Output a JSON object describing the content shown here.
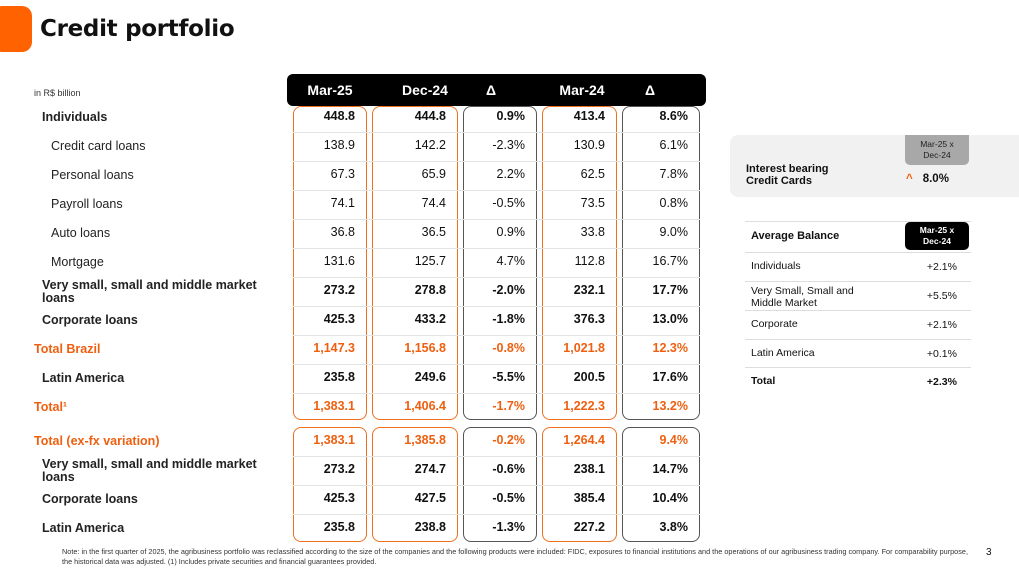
{
  "title": "Credit portfolio",
  "unit": "in R$ billion",
  "columns": [
    "Mar-25",
    "Dec-24",
    "Δ",
    "Mar-24",
    "Δ"
  ],
  "rows": [
    {
      "label": "Individuals",
      "style": "b",
      "values": [
        "448.8",
        "444.8",
        "0.9%",
        "413.4",
        "8.6%"
      ]
    },
    {
      "label": "Credit card loans",
      "style": "sub",
      "values": [
        "138.9",
        "142.2",
        "-2.3%",
        "130.9",
        "6.1%"
      ]
    },
    {
      "label": "Personal loans",
      "style": "sub",
      "values": [
        "67.3",
        "65.9",
        "2.2%",
        "62.5",
        "7.8%"
      ]
    },
    {
      "label": "Payroll loans",
      "style": "sub",
      "values": [
        "74.1",
        "74.4",
        "-0.5%",
        "73.5",
        "0.8%"
      ]
    },
    {
      "label": "Auto loans",
      "style": "sub",
      "values": [
        "36.8",
        "36.5",
        "0.9%",
        "33.8",
        "9.0%"
      ]
    },
    {
      "label": "Mortgage",
      "style": "sub",
      "values": [
        "131.6",
        "125.7",
        "4.7%",
        "112.8",
        "16.7%"
      ]
    },
    {
      "label": "Very small, small and middle market loans",
      "style": "b",
      "values": [
        "273.2",
        "278.8",
        "-2.0%",
        "232.1",
        "17.7%"
      ]
    },
    {
      "label": "Corporate loans",
      "style": "b",
      "values": [
        "425.3",
        "433.2",
        "-1.8%",
        "376.3",
        "13.0%"
      ]
    },
    {
      "label": "Total Brazil",
      "style": "o",
      "values": [
        "1,147.3",
        "1,156.8",
        "-0.8%",
        "1,021.8",
        "12.3%"
      ]
    },
    {
      "label": "Latin America",
      "style": "b",
      "values": [
        "235.8",
        "249.6",
        "-5.5%",
        "200.5",
        "17.6%"
      ]
    },
    {
      "label": "Total¹",
      "style": "o",
      "values": [
        "1,383.1",
        "1,406.4",
        "-1.7%",
        "1,222.3",
        "13.2%"
      ]
    }
  ],
  "rows_exfx": [
    {
      "label": "Total (ex-fx variation)",
      "style": "o",
      "values": [
        "1,383.1",
        "1,385.8",
        "-0.2%",
        "1,264.4",
        "9.4%"
      ]
    },
    {
      "label": "Very small, small and middle market loans",
      "style": "b",
      "values": [
        "273.2",
        "274.7",
        "-0.6%",
        "238.1",
        "14.7%"
      ]
    },
    {
      "label": "Corporate loans",
      "style": "b",
      "values": [
        "425.3",
        "427.5",
        "-0.5%",
        "385.4",
        "10.4%"
      ]
    },
    {
      "label": "Latin America",
      "style": "b",
      "values": [
        "235.8",
        "238.8",
        "-1.3%",
        "227.2",
        "3.8%"
      ]
    }
  ],
  "interest_bearing": {
    "label_line1": "Interest bearing",
    "label_line2": "Credit Cards",
    "header_line1": "Mar-25 x",
    "header_line2": "Dec-24",
    "value": "8.0%",
    "arrow": "^",
    "arrow_icon": "chevron-up-icon"
  },
  "average_balance": {
    "title": "Average Balance",
    "header_line1": "Mar-25 x",
    "header_line2": "Dec-24",
    "rows": [
      {
        "label": "Individuals",
        "value": "+2.1%"
      },
      {
        "label": "Very Small, Small and Middle Market",
        "value": "+5.5%"
      },
      {
        "label": "Corporate",
        "value": "+2.1%"
      },
      {
        "label": "Latin America",
        "value": "+0.1%"
      },
      {
        "label": "Total",
        "value": "+2.3%"
      }
    ]
  },
  "note": "Note: in the first quarter of 2025, the agribusiness portfolio was reclassified according to the size of the companies and the following products were included: FIDC, exposures to financial institutions and the operations of our agribusiness trading company. For comparability purpose, the historical data was adjusted. (1) Includes private securities and financial guarantees provided.",
  "page_number": "3",
  "colors": {
    "accent": "#ff6200",
    "header": "#000000"
  }
}
